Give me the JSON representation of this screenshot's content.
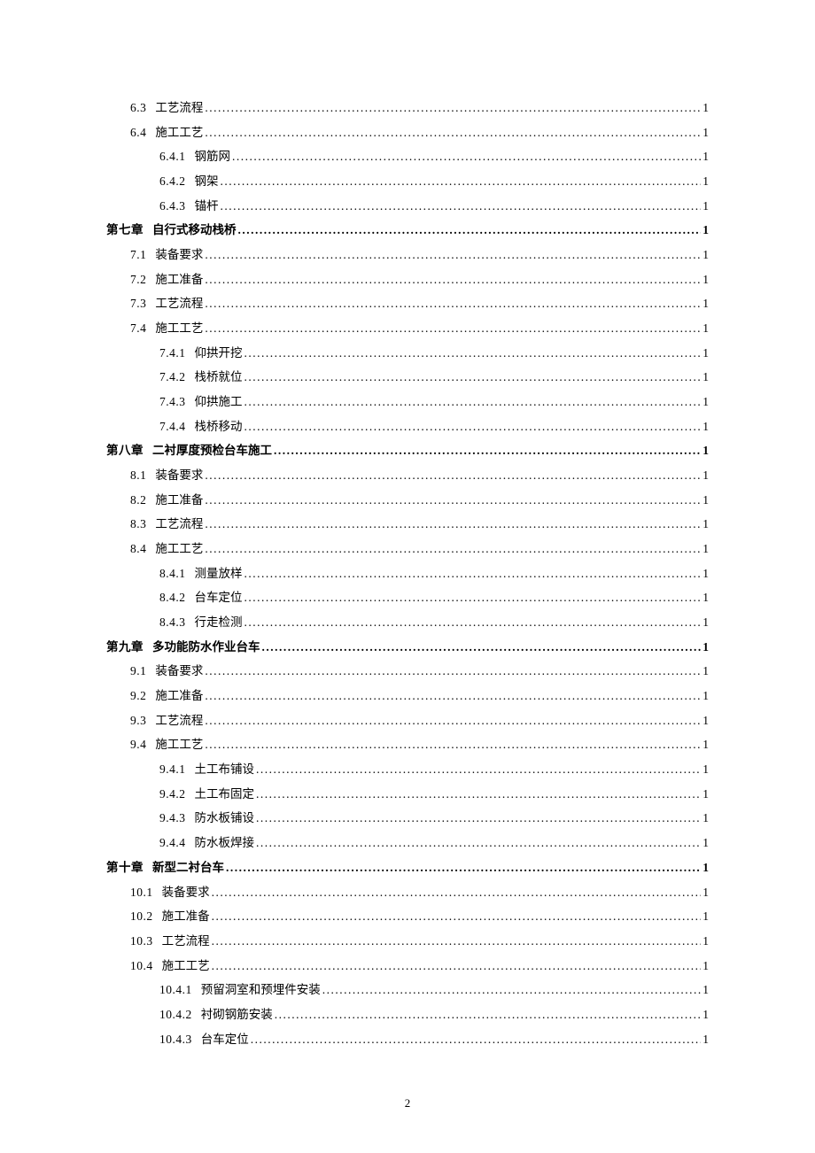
{
  "page_number": "2",
  "entries": [
    {
      "level": 2,
      "num": "6.3",
      "title": "工艺流程",
      "page": "1"
    },
    {
      "level": 2,
      "num": "6.4",
      "title": "施工工艺",
      "page": "1"
    },
    {
      "level": 3,
      "num": "6.4.1",
      "title": "钢筋网",
      "page": "1"
    },
    {
      "level": 3,
      "num": "6.4.2",
      "title": "钢架",
      "page": "1"
    },
    {
      "level": 3,
      "num": "6.4.3",
      "title": "锚杆",
      "page": "1"
    },
    {
      "level": 1,
      "num": "第七章",
      "title": "自行式移动栈桥",
      "page": "1"
    },
    {
      "level": 2,
      "num": "7.1",
      "title": "装备要求",
      "page": "1"
    },
    {
      "level": 2,
      "num": "7.2",
      "title": "施工准备",
      "page": "1"
    },
    {
      "level": 2,
      "num": "7.3",
      "title": "工艺流程",
      "page": "1"
    },
    {
      "level": 2,
      "num": "7.4",
      "title": "施工工艺",
      "page": "1"
    },
    {
      "level": 3,
      "num": "7.4.1",
      "title": "仰拱开挖",
      "page": "1"
    },
    {
      "level": 3,
      "num": "7.4.2",
      "title": "栈桥就位",
      "page": "1"
    },
    {
      "level": 3,
      "num": "7.4.3",
      "title": "仰拱施工",
      "page": "1"
    },
    {
      "level": 3,
      "num": "7.4.4",
      "title": "栈桥移动",
      "page": "1"
    },
    {
      "level": 1,
      "num": "第八章",
      "title": "二衬厚度预检台车施工",
      "page": "1"
    },
    {
      "level": 2,
      "num": "8.1",
      "title": "装备要求",
      "page": "1"
    },
    {
      "level": 2,
      "num": "8.2",
      "title": "施工准备",
      "page": "1"
    },
    {
      "level": 2,
      "num": "8.3",
      "title": "工艺流程",
      "page": "1"
    },
    {
      "level": 2,
      "num": "8.4",
      "title": "施工工艺",
      "page": "1"
    },
    {
      "level": 3,
      "num": "8.4.1",
      "title": "测量放样",
      "page": "1"
    },
    {
      "level": 3,
      "num": "8.4.2",
      "title": "台车定位",
      "page": "1"
    },
    {
      "level": 3,
      "num": "8.4.3",
      "title": "行走检测",
      "page": "1"
    },
    {
      "level": 1,
      "num": "第九章",
      "title": "多功能防水作业台车",
      "page": "1"
    },
    {
      "level": 2,
      "num": "9.1",
      "title": "装备要求",
      "page": "1"
    },
    {
      "level": 2,
      "num": "9.2",
      "title": "施工准备",
      "page": "1"
    },
    {
      "level": 2,
      "num": "9.3",
      "title": "工艺流程",
      "page": "1"
    },
    {
      "level": 2,
      "num": "9.4",
      "title": "施工工艺",
      "page": "1"
    },
    {
      "level": 3,
      "num": "9.4.1",
      "title": "土工布铺设",
      "page": "1"
    },
    {
      "level": 3,
      "num": "9.4.2",
      "title": "土工布固定",
      "page": "1"
    },
    {
      "level": 3,
      "num": "9.4.3",
      "title": "防水板铺设",
      "page": "1"
    },
    {
      "level": 3,
      "num": "9.4.4",
      "title": "防水板焊接",
      "page": "1"
    },
    {
      "level": 1,
      "num": "第十章",
      "title": "新型二衬台车",
      "page": "1"
    },
    {
      "level": 2,
      "num": "10.1",
      "title": "装备要求",
      "page": "1"
    },
    {
      "level": 2,
      "num": "10.2",
      "title": "施工准备",
      "page": "1"
    },
    {
      "level": 2,
      "num": "10.3",
      "title": "工艺流程",
      "page": "1"
    },
    {
      "level": 2,
      "num": "10.4",
      "title": "施工工艺",
      "page": "1"
    },
    {
      "level": 3,
      "num": "10.4.1",
      "title": "预留洞室和预埋件安装",
      "page": "1"
    },
    {
      "level": 3,
      "num": "10.4.2",
      "title": "衬砌钢筋安装",
      "page": "1"
    },
    {
      "level": 3,
      "num": "10.4.3",
      "title": "台车定位",
      "page": "1"
    }
  ]
}
